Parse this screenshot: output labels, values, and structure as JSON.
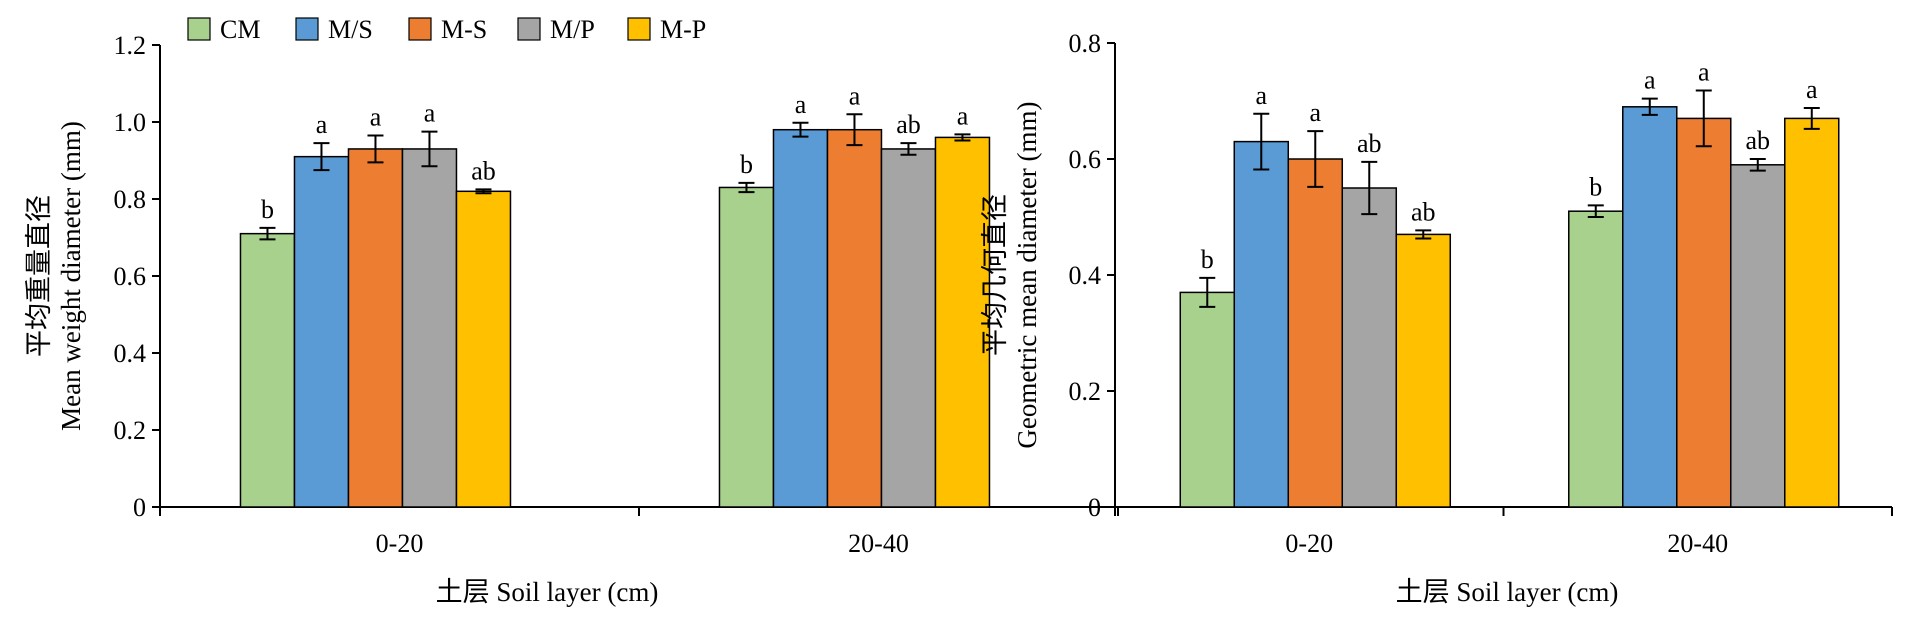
{
  "legend": {
    "items": [
      {
        "name": "CM",
        "color": "#A9D18E"
      },
      {
        "name": "M/S",
        "color": "#5B9BD5"
      },
      {
        "name": "M-S",
        "color": "#ED7D31"
      },
      {
        "name": "M/P",
        "color": "#A5A5A5"
      },
      {
        "name": "M-P",
        "color": "#FFC000"
      }
    ]
  },
  "chart_data": [
    {
      "type": "bar",
      "title": "",
      "ylabel_cn": "平均重量直径",
      "ylabel": "Mean weight diameter (mm)",
      "xlabel": "土层 Soil layer (cm)",
      "categories": [
        "0-20",
        "20-40"
      ],
      "ylim": [
        0,
        1.2
      ],
      "yticks": [
        "0",
        "0.2",
        "0.4",
        "0.6",
        "0.8",
        "1.0",
        "1.2"
      ],
      "grid": false,
      "series": [
        {
          "name": "CM",
          "values": [
            0.71,
            0.83
          ],
          "errors": [
            0.015,
            0.012
          ],
          "labels": [
            "b",
            "b"
          ]
        },
        {
          "name": "M/S",
          "values": [
            0.91,
            0.98
          ],
          "errors": [
            0.035,
            0.018
          ],
          "labels": [
            "a",
            "a"
          ]
        },
        {
          "name": "M-S",
          "values": [
            0.93,
            0.98
          ],
          "errors": [
            0.035,
            0.04
          ],
          "labels": [
            "a",
            "a"
          ]
        },
        {
          "name": "M/P",
          "values": [
            0.93,
            0.93
          ],
          "errors": [
            0.045,
            0.015
          ],
          "labels": [
            "a",
            "ab"
          ]
        },
        {
          "name": "M-P",
          "values": [
            0.82,
            0.96
          ],
          "errors": [
            0.005,
            0.008
          ],
          "labels": [
            "ab",
            "a"
          ]
        }
      ]
    },
    {
      "type": "bar",
      "title": "",
      "ylabel_cn": "平均几何直径",
      "ylabel": "Geometric mean diameter (mm)",
      "xlabel": "土层 Soil layer (cm)",
      "categories": [
        "0-20",
        "20-40"
      ],
      "ylim": [
        0,
        0.8
      ],
      "yticks": [
        "0",
        "0.2",
        "0.4",
        "0.6",
        "0.8"
      ],
      "grid": false,
      "series": [
        {
          "name": "CM",
          "values": [
            0.37,
            0.51
          ],
          "errors": [
            0.025,
            0.01
          ],
          "labels": [
            "b",
            "b"
          ]
        },
        {
          "name": "M/S",
          "values": [
            0.63,
            0.69
          ],
          "errors": [
            0.048,
            0.014
          ],
          "labels": [
            "a",
            "a"
          ]
        },
        {
          "name": "M-S",
          "values": [
            0.6,
            0.67
          ],
          "errors": [
            0.048,
            0.048
          ],
          "labels": [
            "a",
            "a"
          ]
        },
        {
          "name": "M/P",
          "values": [
            0.55,
            0.59
          ],
          "errors": [
            0.045,
            0.01
          ],
          "labels": [
            "ab",
            "ab"
          ]
        },
        {
          "name": "M-P",
          "values": [
            0.47,
            0.67
          ],
          "errors": [
            0.007,
            0.018
          ],
          "labels": [
            "ab",
            "a"
          ]
        }
      ]
    }
  ]
}
